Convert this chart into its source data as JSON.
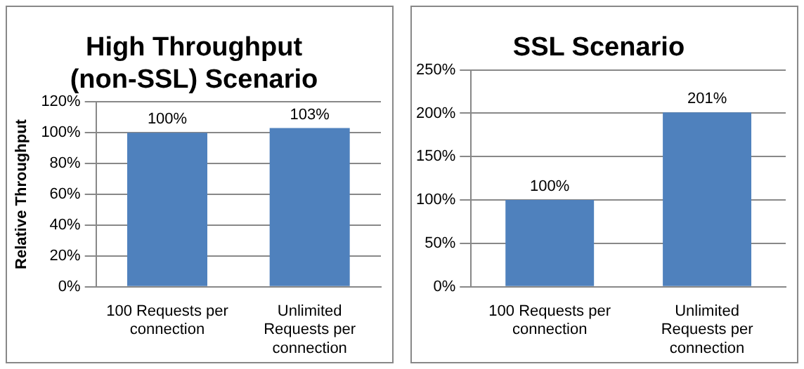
{
  "chart_data": [
    {
      "type": "bar",
      "title": "High Throughput (non-SSL) Scenario",
      "ylabel": "Relative Throughput",
      "categories": [
        "100 Requests per connection",
        "Unlimited Requests per connection"
      ],
      "series": [
        {
          "color": "#4f81bd",
          "values": [
            100,
            103
          ],
          "value_labels": [
            "100%",
            "103%"
          ]
        }
      ],
      "ylim": [
        0,
        120
      ],
      "yticks": [
        {
          "value": 0,
          "label": "0%"
        },
        {
          "value": 20,
          "label": "20%"
        },
        {
          "value": 40,
          "label": "40%"
        },
        {
          "value": 60,
          "label": "60%"
        },
        {
          "value": 80,
          "label": "80%"
        },
        {
          "value": 100,
          "label": "100%"
        },
        {
          "value": 120,
          "label": "120%"
        }
      ],
      "grid": "y",
      "legend": false
    },
    {
      "type": "bar",
      "title": "SSL Scenario",
      "categories": [
        "100 Requests per connection",
        "Unlimited Requests per connection"
      ],
      "series": [
        {
          "color": "#4f81bd",
          "values": [
            100,
            201
          ],
          "value_labels": [
            "100%",
            "201%"
          ]
        }
      ],
      "ylim": [
        0,
        250
      ],
      "yticks": [
        {
          "value": 0,
          "label": "0%"
        },
        {
          "value": 50,
          "label": "50%"
        },
        {
          "value": 100,
          "label": "100%"
        },
        {
          "value": 150,
          "label": "150%"
        },
        {
          "value": 200,
          "label": "200%"
        },
        {
          "value": 250,
          "label": "250%"
        }
      ],
      "grid": "y",
      "legend": false
    }
  ]
}
